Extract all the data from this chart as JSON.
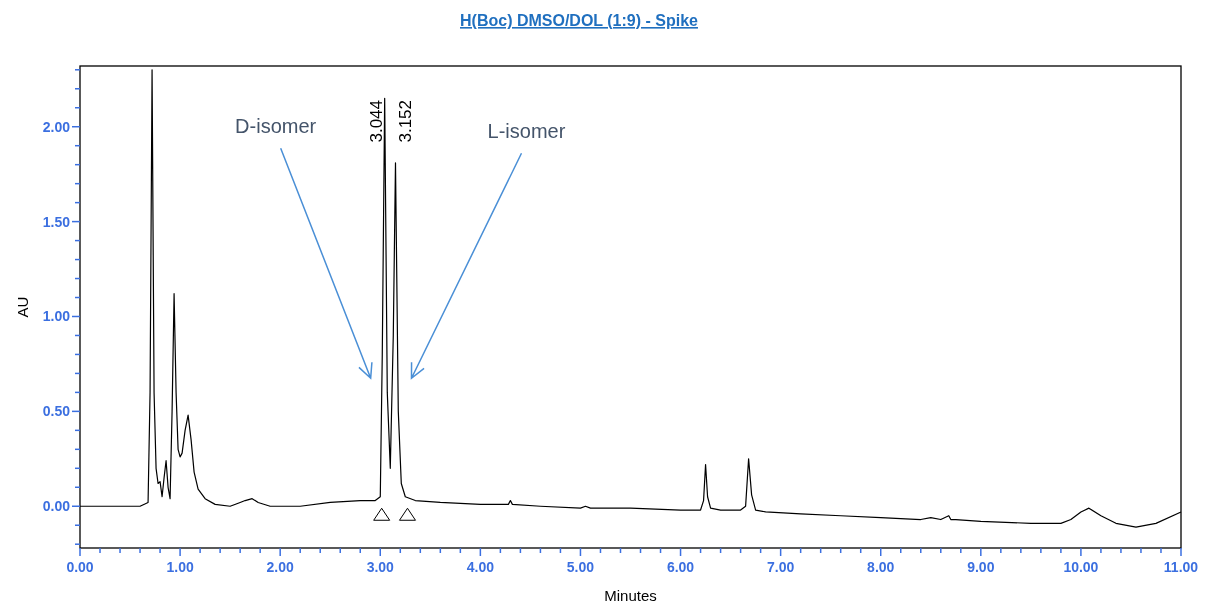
{
  "chart_data": {
    "type": "line",
    "title": "H(Boc) DMSO/DOL (1:9) - Spike",
    "xlabel": "Minutes",
    "ylabel": "AU",
    "x": [
      0,
      0.3,
      0.6,
      0.68,
      0.7,
      0.72,
      0.74,
      0.76,
      0.78,
      0.8,
      0.82,
      0.84,
      0.86,
      0.88,
      0.9,
      0.92,
      0.94,
      0.96,
      0.98,
      1.0,
      1.02,
      1.05,
      1.08,
      1.11,
      1.14,
      1.18,
      1.25,
      1.35,
      1.5,
      1.6,
      1.65,
      1.72,
      1.78,
      1.9,
      2.2,
      2.5,
      2.8,
      2.95,
      3.0,
      3.02,
      3.044,
      3.07,
      3.1,
      3.13,
      3.152,
      3.18,
      3.21,
      3.25,
      3.35,
      3.6,
      4.0,
      4.28,
      4.3,
      4.32,
      4.6,
      5.0,
      5.05,
      5.1,
      5.5,
      6.0,
      6.2,
      6.23,
      6.25,
      6.27,
      6.3,
      6.4,
      6.6,
      6.65,
      6.68,
      6.71,
      6.75,
      6.85,
      7.2,
      7.6,
      8.0,
      8.4,
      8.5,
      8.6,
      8.68,
      8.7,
      8.75,
      9.0,
      9.5,
      9.8,
      9.9,
      10.0,
      10.08,
      10.2,
      10.35,
      10.55,
      10.75,
      11.0
    ],
    "series": [
      {
        "color": "#000000",
        "values": [
          0,
          0,
          0,
          0.02,
          0.6,
          2.3,
          0.6,
          0.2,
          0.12,
          0.13,
          0.05,
          0.15,
          0.24,
          0.1,
          0.04,
          0.5,
          1.12,
          0.6,
          0.3,
          0.26,
          0.28,
          0.4,
          0.48,
          0.35,
          0.18,
          0.09,
          0.04,
          0.01,
          0,
          0.02,
          0.03,
          0.04,
          0.02,
          0,
          0,
          0.02,
          0.03,
          0.03,
          0.05,
          0.8,
          2.15,
          0.6,
          0.2,
          0.9,
          1.81,
          0.5,
          0.12,
          0.05,
          0.03,
          0.02,
          0.01,
          0.01,
          0.03,
          0.01,
          0,
          -0.01,
          0,
          -0.01,
          -0.01,
          -0.02,
          -0.02,
          0.03,
          0.22,
          0.05,
          -0.01,
          -0.02,
          -0.02,
          0,
          0.25,
          0.06,
          -0.02,
          -0.03,
          -0.04,
          -0.05,
          -0.06,
          -0.07,
          -0.06,
          -0.07,
          -0.05,
          -0.07,
          -0.07,
          -0.08,
          -0.09,
          -0.09,
          -0.07,
          -0.03,
          -0.01,
          -0.05,
          -0.09,
          -0.11,
          -0.09,
          -0.03
        ]
      }
    ],
    "xlim": [
      0,
      11
    ],
    "xticks": [
      {
        "value": 0,
        "label": "0.00"
      },
      {
        "value": 0.2,
        "label": null
      },
      {
        "value": 0.4,
        "label": null
      },
      {
        "value": 0.6,
        "label": null
      },
      {
        "value": 0.8,
        "label": null
      },
      {
        "value": 1,
        "label": "1.00"
      },
      {
        "value": 1.2,
        "label": null
      },
      {
        "value": 1.4,
        "label": null
      },
      {
        "value": 1.6,
        "label": null
      },
      {
        "value": 1.8,
        "label": null
      },
      {
        "value": 2,
        "label": "2.00"
      },
      {
        "value": 2.2,
        "label": null
      },
      {
        "value": 2.4,
        "label": null
      },
      {
        "value": 2.6,
        "label": null
      },
      {
        "value": 2.8,
        "label": null
      },
      {
        "value": 3,
        "label": "3.00"
      },
      {
        "value": 3.2,
        "label": null
      },
      {
        "value": 3.4,
        "label": null
      },
      {
        "value": 3.6,
        "label": null
      },
      {
        "value": 3.8,
        "label": null
      },
      {
        "value": 4,
        "label": "4.00"
      },
      {
        "value": 4.2,
        "label": null
      },
      {
        "value": 4.4,
        "label": null
      },
      {
        "value": 4.6,
        "label": null
      },
      {
        "value": 4.8,
        "label": null
      },
      {
        "value": 5,
        "label": "5.00"
      },
      {
        "value": 5.2,
        "label": null
      },
      {
        "value": 5.4,
        "label": null
      },
      {
        "value": 5.6,
        "label": null
      },
      {
        "value": 5.8,
        "label": null
      },
      {
        "value": 6,
        "label": "6.00"
      },
      {
        "value": 6.2,
        "label": null
      },
      {
        "value": 6.4,
        "label": null
      },
      {
        "value": 6.6,
        "label": null
      },
      {
        "value": 6.8,
        "label": null
      },
      {
        "value": 7,
        "label": "7.00"
      },
      {
        "value": 7.2,
        "label": null
      },
      {
        "value": 7.4,
        "label": null
      },
      {
        "value": 7.6,
        "label": null
      },
      {
        "value": 7.8,
        "label": null
      },
      {
        "value": 8,
        "label": "8.00"
      },
      {
        "value": 8.2,
        "label": null
      },
      {
        "value": 8.4,
        "label": null
      },
      {
        "value": 8.6,
        "label": null
      },
      {
        "value": 8.8,
        "label": null
      },
      {
        "value": 9,
        "label": "9.00"
      },
      {
        "value": 9.2,
        "label": null
      },
      {
        "value": 9.4,
        "label": null
      },
      {
        "value": 9.6,
        "label": null
      },
      {
        "value": 9.8,
        "label": null
      },
      {
        "value": 10,
        "label": "10.00"
      },
      {
        "value": 10.2,
        "label": null
      },
      {
        "value": 10.4,
        "label": null
      },
      {
        "value": 10.6,
        "label": null
      },
      {
        "value": 10.8,
        "label": null
      },
      {
        "value": 11,
        "label": "11.00"
      }
    ],
    "ylim": [
      -0.22,
      2.32
    ],
    "yticks": [
      {
        "value": -0.2,
        "label": null
      },
      {
        "value": -0.1,
        "label": null
      },
      {
        "value": 0,
        "label": "0.00"
      },
      {
        "value": 0.1,
        "label": null
      },
      {
        "value": 0.2,
        "label": null
      },
      {
        "value": 0.3,
        "label": null
      },
      {
        "value": 0.4,
        "label": null
      },
      {
        "value": 0.5,
        "label": "0.50"
      },
      {
        "value": 0.6,
        "label": null
      },
      {
        "value": 0.7,
        "label": null
      },
      {
        "value": 0.8,
        "label": null
      },
      {
        "value": 0.9,
        "label": null
      },
      {
        "value": 1,
        "label": "1.00"
      },
      {
        "value": 1.1,
        "label": null
      },
      {
        "value": 1.2,
        "label": null
      },
      {
        "value": 1.3,
        "label": null
      },
      {
        "value": 1.4,
        "label": null
      },
      {
        "value": 1.5,
        "label": "1.50"
      },
      {
        "value": 1.6,
        "label": null
      },
      {
        "value": 1.7,
        "label": null
      },
      {
        "value": 1.8,
        "label": null
      },
      {
        "value": 1.9,
        "label": null
      },
      {
        "value": 2,
        "label": "2.00"
      },
      {
        "value": 2.1,
        "label": null
      },
      {
        "value": 2.2,
        "label": null
      },
      {
        "value": 2.3,
        "label": null
      }
    ],
    "grid": false,
    "marker": "none",
    "line_style": "solid",
    "annotations": [
      {
        "text": "3.044",
        "x": 3.044,
        "y": 2.15
      },
      {
        "text": "3.152",
        "x": 3.152,
        "y": 1.81
      },
      "D-isomer",
      "L-isomer"
    ]
  }
}
